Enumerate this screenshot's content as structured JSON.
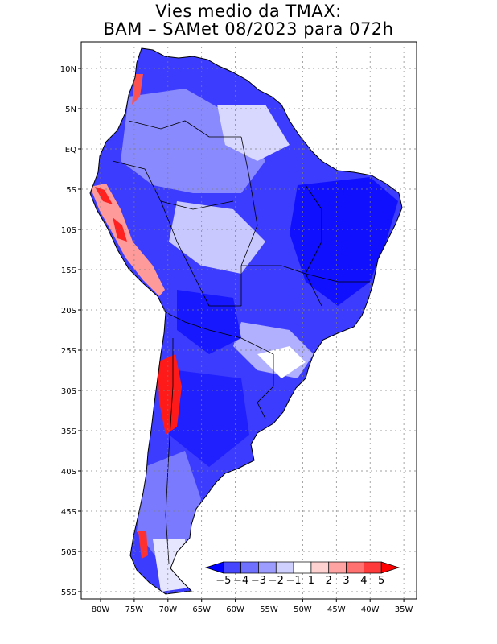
{
  "title": {
    "line1": "Vies medio da TMAX:",
    "line2": "BAM – SAMet 08/2023  para 072h"
  },
  "map": {
    "region": "South America",
    "variable": "TMAX bias",
    "lat_labels": [
      "10N",
      "5N",
      "EQ",
      "5S",
      "10S",
      "15S",
      "20S",
      "25S",
      "30S",
      "35S",
      "40S",
      "45S",
      "50S",
      "55S"
    ],
    "lon_labels": [
      "80W",
      "75W",
      "70W",
      "65W",
      "60W",
      "55W",
      "50W",
      "45W",
      "40W",
      "35W"
    ]
  },
  "colorbar": {
    "labels": [
      "-5",
      "-4",
      "-3",
      "-2",
      "-1",
      "1",
      "2",
      "3",
      "4",
      "5"
    ],
    "colors": [
      "#0000ff",
      "#4646ff",
      "#7070ff",
      "#9c9cff",
      "#d0d0ff",
      "#ffffff",
      "#ffd2d2",
      "#ffa2a2",
      "#ff7070",
      "#ff3a3a",
      "#ff0000"
    ]
  },
  "colors": {
    "strong_negative": "#1e1eff",
    "medium_negative": "#6a6aff",
    "light_negative": "#c8c8ff",
    "positive": "#ff2a2a"
  }
}
